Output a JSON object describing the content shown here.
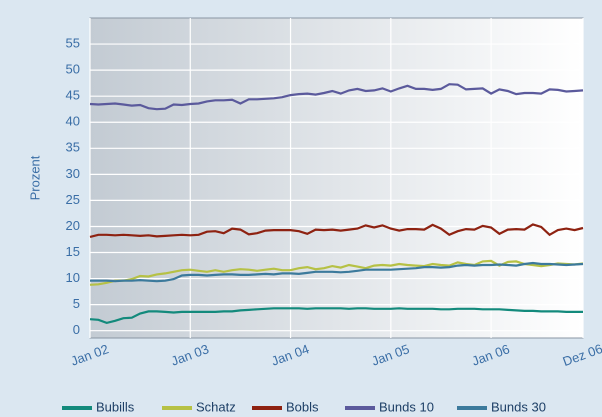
{
  "chart_data": {
    "type": "line",
    "ylabel": "Prozent",
    "categories": [
      "Jan 02",
      null,
      null,
      null,
      null,
      null,
      null,
      null,
      null,
      null,
      null,
      null,
      "Jan 03",
      null,
      null,
      null,
      null,
      null,
      null,
      null,
      null,
      null,
      null,
      null,
      "Jan 04",
      null,
      null,
      null,
      null,
      null,
      null,
      null,
      null,
      null,
      null,
      null,
      "Jan 05",
      null,
      null,
      null,
      null,
      null,
      null,
      null,
      null,
      null,
      null,
      null,
      "Jan 06",
      null,
      null,
      null,
      null,
      null,
      null,
      null,
      null,
      null,
      null,
      "Dez 06"
    ],
    "ylim": [
      -1.4,
      60
    ],
    "yticks": [
      0,
      5,
      10,
      15,
      20,
      25,
      30,
      35,
      40,
      45,
      50,
      55
    ],
    "grid": true,
    "legend": "bottom",
    "series": [
      {
        "name": "Bubills",
        "color": "#138a7c",
        "values": [
          2.2,
          2.1,
          1.5,
          1.9,
          2.4,
          2.5,
          3.3,
          3.7,
          3.7,
          3.6,
          3.5,
          3.6,
          3.6,
          3.6,
          3.6,
          3.6,
          3.7,
          3.7,
          3.9,
          4.0,
          4.1,
          4.2,
          4.3,
          4.3,
          4.3,
          4.3,
          4.2,
          4.3,
          4.3,
          4.3,
          4.3,
          4.2,
          4.3,
          4.3,
          4.2,
          4.2,
          4.2,
          4.3,
          4.2,
          4.2,
          4.2,
          4.2,
          4.1,
          4.1,
          4.2,
          4.2,
          4.2,
          4.1,
          4.1,
          4.1,
          4.0,
          3.9,
          3.8,
          3.8,
          3.7,
          3.7,
          3.7,
          3.6,
          3.6,
          3.6
        ]
      },
      {
        "name": "Schatz",
        "color": "#b6c145",
        "values": [
          8.8,
          8.9,
          9.2,
          9.6,
          9.6,
          9.9,
          10.5,
          10.4,
          10.8,
          11.0,
          11.3,
          11.6,
          11.7,
          11.5,
          11.3,
          11.6,
          11.3,
          11.6,
          11.8,
          11.7,
          11.5,
          11.7,
          11.9,
          11.6,
          11.6,
          12.0,
          12.2,
          11.8,
          12.0,
          12.4,
          12.1,
          12.6,
          12.3,
          12.0,
          12.5,
          12.6,
          12.5,
          12.8,
          12.6,
          12.5,
          12.4,
          12.8,
          12.6,
          12.5,
          13.1,
          12.8,
          12.6,
          13.3,
          13.4,
          12.5,
          13.2,
          13.3,
          12.8,
          12.6,
          12.4,
          12.6,
          12.9,
          12.8,
          12.7,
          12.9
        ]
      },
      {
        "name": "Bobls",
        "color": "#8e2211",
        "values": [
          18.0,
          18.4,
          18.4,
          18.3,
          18.4,
          18.3,
          18.2,
          18.3,
          18.1,
          18.2,
          18.3,
          18.4,
          18.3,
          18.4,
          19.0,
          19.1,
          18.7,
          19.6,
          19.4,
          18.5,
          18.7,
          19.2,
          19.3,
          19.3,
          19.3,
          19.1,
          18.6,
          19.4,
          19.3,
          19.4,
          19.2,
          19.4,
          19.6,
          20.2,
          19.8,
          20.2,
          19.6,
          19.2,
          19.5,
          19.5,
          19.4,
          20.3,
          19.6,
          18.4,
          19.1,
          19.5,
          19.4,
          20.1,
          19.8,
          18.6,
          19.4,
          19.5,
          19.4,
          20.4,
          19.9,
          18.4,
          19.3,
          19.6,
          19.3,
          19.7
        ]
      },
      {
        "name": "Bunds 10",
        "color": "#5b5a9c",
        "values": [
          43.5,
          43.4,
          43.5,
          43.6,
          43.4,
          43.2,
          43.3,
          42.7,
          42.5,
          42.6,
          43.4,
          43.3,
          43.5,
          43.6,
          44.0,
          44.2,
          44.2,
          44.3,
          43.6,
          44.4,
          44.4,
          44.5,
          44.6,
          44.8,
          45.2,
          45.4,
          45.5,
          45.3,
          45.6,
          46.0,
          45.5,
          46.1,
          46.4,
          46.0,
          46.1,
          46.5,
          45.9,
          46.5,
          47.0,
          46.4,
          46.4,
          46.2,
          46.4,
          47.3,
          47.2,
          46.3,
          46.4,
          46.5,
          45.5,
          46.3,
          46.0,
          45.4,
          45.6,
          45.6,
          45.5,
          46.3,
          46.2,
          45.9,
          46.0,
          46.1
        ]
      },
      {
        "name": "Bunds 30",
        "color": "#3c7a9c",
        "values": [
          9.6,
          9.6,
          9.6,
          9.5,
          9.6,
          9.6,
          9.7,
          9.6,
          9.5,
          9.6,
          9.9,
          10.6,
          10.7,
          10.7,
          10.6,
          10.7,
          10.8,
          10.8,
          10.7,
          10.7,
          10.8,
          10.9,
          10.8,
          11.0,
          11.0,
          10.9,
          11.1,
          11.3,
          11.3,
          11.3,
          11.2,
          11.3,
          11.5,
          11.7,
          11.7,
          11.7,
          11.7,
          11.8,
          11.9,
          12.0,
          12.2,
          12.2,
          12.1,
          12.2,
          12.5,
          12.6,
          12.5,
          12.6,
          12.6,
          12.7,
          12.6,
          12.5,
          12.8,
          13.0,
          12.8,
          12.8,
          12.7,
          12.6,
          12.7,
          12.8
        ]
      }
    ]
  }
}
